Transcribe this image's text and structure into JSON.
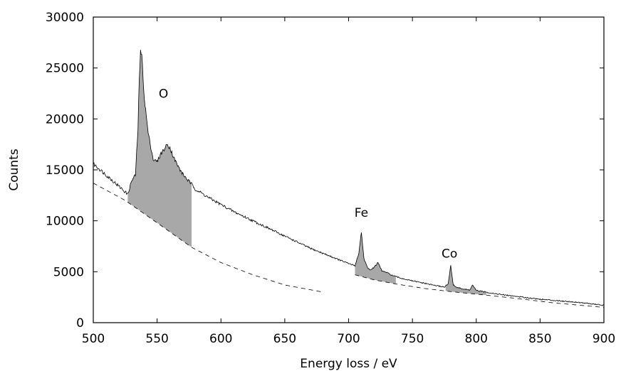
{
  "chart_data": {
    "type": "line",
    "title": "",
    "xlabel": "Energy loss / eV",
    "ylabel": "Counts",
    "xlim": [
      500,
      900
    ],
    "ylim": [
      0,
      30000
    ],
    "x_ticks": [
      "500",
      "550",
      "600",
      "650",
      "700",
      "750",
      "800",
      "850",
      "900"
    ],
    "y_ticks": [
      "0",
      "5000",
      "10000",
      "15000",
      "20000",
      "25000",
      "30000"
    ],
    "grid": false,
    "legend": "none",
    "colors": {
      "spectrum": "#000000",
      "edge_fill": "#a8a8a8",
      "background_fit": "#000000"
    },
    "series": [
      {
        "role": "spectrum",
        "x": [
          500,
          510,
          520,
          527,
          530,
          533,
          535,
          536,
          537,
          538,
          540,
          543,
          547,
          550,
          553,
          556,
          558,
          560,
          563,
          567,
          570,
          574,
          577,
          580,
          590,
          600,
          610,
          620,
          630,
          640,
          650,
          660,
          670,
          680,
          690,
          700,
          705,
          708,
          710,
          712,
          715,
          718,
          721,
          723,
          726,
          730,
          735,
          740,
          745,
          750,
          760,
          770,
          775,
          778,
          780,
          782,
          785,
          790,
          795,
          797,
          800,
          810,
          820,
          830,
          840,
          850,
          860,
          870,
          880,
          890,
          900
        ],
        "y": [
          15600,
          14500,
          13400,
          12600,
          13900,
          14500,
          19000,
          24000,
          26500,
          26200,
          22000,
          18600,
          16000,
          15800,
          16600,
          17100,
          17500,
          17200,
          16200,
          15200,
          14600,
          14000,
          13600,
          13100,
          12300,
          11600,
          10900,
          10300,
          9700,
          9100,
          8500,
          7900,
          7300,
          6800,
          6300,
          5800,
          5600,
          6800,
          8900,
          6300,
          5300,
          5200,
          5600,
          5900,
          5100,
          4900,
          4600,
          4400,
          4250,
          4100,
          3850,
          3600,
          3500,
          3800,
          5600,
          3700,
          3450,
          3300,
          3200,
          3700,
          3150,
          2950,
          2750,
          2600,
          2450,
          2300,
          2200,
          2100,
          2000,
          1850,
          1700
        ]
      },
      {
        "role": "background_fit",
        "segments": [
          {
            "x": [
              500,
              525,
              550,
              577,
              600,
              625,
              650,
              680
            ],
            "y": [
              13700,
              12000,
              9800,
              7400,
              5900,
              4700,
              3700,
              3000
            ]
          },
          {
            "x": [
              705,
              720,
              737,
              760,
              780,
              808,
              830,
              860,
              900
            ],
            "y": [
              4700,
              4200,
              3800,
              3350,
              3050,
              2700,
              2400,
              1950,
              1500
            ]
          }
        ]
      }
    ],
    "edges": [
      {
        "label": "O",
        "range": [
          527,
          577
        ],
        "label_pos": [
          555,
          22500
        ]
      },
      {
        "label": "Fe",
        "range": [
          705,
          737
        ],
        "label_pos": [
          710,
          10800
        ]
      },
      {
        "label": "Co",
        "range": [
          776,
          808
        ],
        "label_pos": [
          779,
          6800
        ]
      }
    ]
  }
}
